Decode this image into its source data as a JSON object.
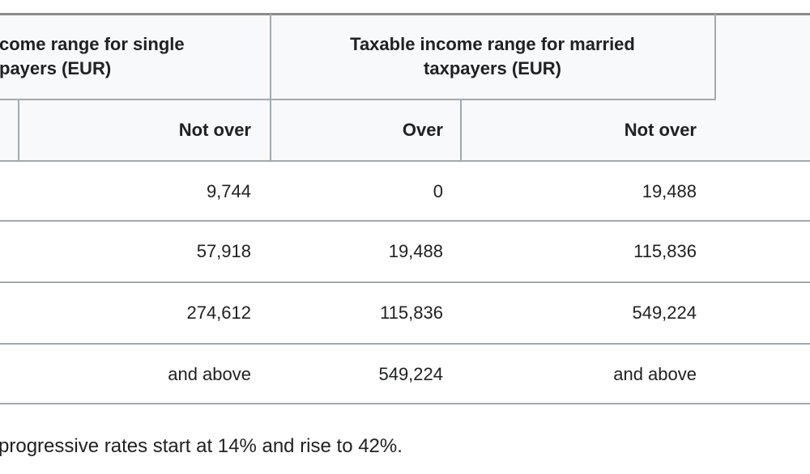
{
  "table": {
    "group_headers": [
      {
        "lines": [
          "come range for single",
          "payers (EUR)"
        ]
      },
      {
        "lines": [
          "Taxable income range for married",
          "taxpayers (EUR)"
        ]
      }
    ],
    "sub_headers": [
      "Not over",
      "Over",
      "Not over"
    ],
    "rows": [
      [
        "9,744",
        "0",
        "19,488"
      ],
      [
        "57,918",
        "19,488",
        "115,836"
      ],
      [
        "274,612",
        "115,836",
        "549,224"
      ],
      [
        "and above",
        "549,224",
        "and above"
      ]
    ]
  },
  "footnote": "progressive rates start at 14% and rise to 42%."
}
